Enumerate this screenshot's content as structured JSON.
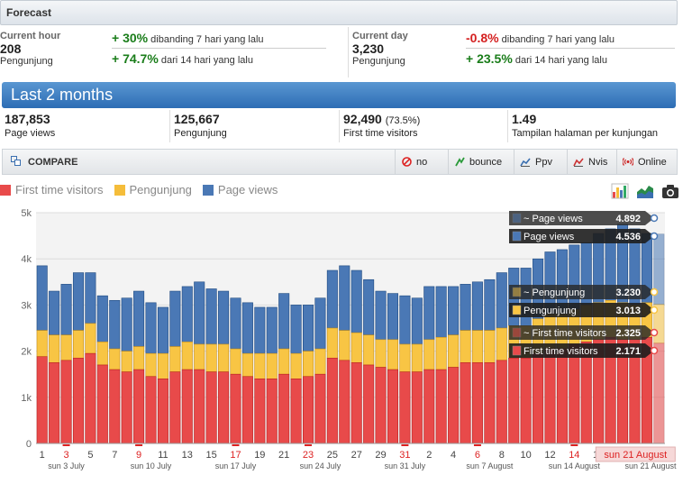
{
  "forecast": {
    "title": "Forecast",
    "hour": {
      "label": "Current hour",
      "value": "208",
      "unit": "Pengunjung",
      "cmp1_pct": "+ 30%",
      "cmp1_text": "dibanding 7 hari yang lalu",
      "cmp2_pct": "+ 74.7%",
      "cmp2_text": "dari 14 hari yang lalu"
    },
    "day": {
      "label": "Current day",
      "value": "3,230",
      "unit": "Pengunjung",
      "cmp1_pct": "-0.8%",
      "cmp1_text": "dibanding 7 hari yang lalu",
      "cmp2_pct": "+ 23.5%",
      "cmp2_text": "dari 14 hari yang lalu"
    }
  },
  "period": {
    "title": "Last 2 months"
  },
  "stats": [
    {
      "value": "187,853",
      "extra": "",
      "label": "Page views"
    },
    {
      "value": "125,667",
      "extra": "",
      "label": "Pengunjung"
    },
    {
      "value": "92,490",
      "extra": "(73.5%)",
      "label": "First time visitors"
    },
    {
      "value": "1.49",
      "extra": "",
      "label": "Tampilan halaman per kunjungan"
    }
  ],
  "compare": {
    "title": "COMPARE",
    "tools": [
      {
        "label": "no",
        "icon": "no-icon"
      },
      {
        "label": "bounce",
        "icon": "bounce-icon"
      },
      {
        "label": "Ppv",
        "icon": "ppv-icon"
      },
      {
        "label": "Nvis",
        "icon": "nvis-icon"
      },
      {
        "label": "Online",
        "icon": "online-icon"
      }
    ]
  },
  "legend": [
    {
      "label": "First time visitors",
      "color": "#e83535"
    },
    {
      "label": "Pengunjung",
      "color": "#f5bd3a"
    },
    {
      "label": "Page views",
      "color": "#4a78b5"
    }
  ],
  "tooltips": {
    "page_views_forecast_label": "~ Page views",
    "page_views_forecast_value": "4.892",
    "page_views_label": "Page views",
    "page_views_value": "4.536",
    "visitors_forecast_label": "~ Pengunjung",
    "visitors_forecast_value": "3.230",
    "visitors_label": "Pengunjung",
    "visitors_value": "3.013",
    "ftv_forecast_label": "~ First time visitors",
    "ftv_forecast_value": "2.325",
    "ftv_label": "First time visitors",
    "ftv_value": "2.171"
  },
  "chart_data": {
    "type": "bar",
    "ylim": [
      0,
      5000
    ],
    "y_ticks": [
      "0",
      "1k",
      "2k",
      "3k",
      "4k",
      "5k"
    ],
    "x_day_labels": [
      {
        "day": 1,
        "text": "1",
        "red": false
      },
      {
        "day": 3,
        "text": "3",
        "red": true
      },
      {
        "day": 5,
        "text": "5",
        "red": false
      },
      {
        "day": 7,
        "text": "7",
        "red": false
      },
      {
        "day": 9,
        "text": "9",
        "red": true
      },
      {
        "day": 11,
        "text": "11",
        "red": false
      },
      {
        "day": 13,
        "text": "13",
        "red": false
      },
      {
        "day": 15,
        "text": "15",
        "red": false
      },
      {
        "day": 17,
        "text": "17",
        "red": true
      },
      {
        "day": 19,
        "text": "19",
        "red": false
      },
      {
        "day": 21,
        "text": "21",
        "red": false
      },
      {
        "day": 23,
        "text": "23",
        "red": true
      },
      {
        "day": 25,
        "text": "25",
        "red": false
      },
      {
        "day": 27,
        "text": "27",
        "red": false
      },
      {
        "day": 29,
        "text": "29",
        "red": false
      },
      {
        "day": 31,
        "text": "31",
        "red": true
      },
      {
        "day": 33,
        "text": "2",
        "red": false
      },
      {
        "day": 35,
        "text": "4",
        "red": false
      },
      {
        "day": 37,
        "text": "6",
        "red": true
      },
      {
        "day": 39,
        "text": "8",
        "red": false
      },
      {
        "day": 41,
        "text": "10",
        "red": false
      },
      {
        "day": 43,
        "text": "12",
        "red": false
      },
      {
        "day": 45,
        "text": "14",
        "red": true
      },
      {
        "day": 47,
        "text": "16",
        "red": false
      }
    ],
    "x_week_labels": [
      {
        "day": 3,
        "text": "sun 3 July"
      },
      {
        "day": 10,
        "text": "sun 10 July"
      },
      {
        "day": 17,
        "text": "sun 17 July"
      },
      {
        "day": 24,
        "text": "sun 24 July"
      },
      {
        "day": 31,
        "text": "sun 31 July"
      },
      {
        "day": 38,
        "text": "sun 7 August"
      },
      {
        "day": 45,
        "text": "sun 14 August"
      },
      {
        "day": 52,
        "text": "sun 21 August"
      }
    ],
    "highlight_label": "sun 21 August",
    "series": [
      {
        "name": "First time visitors",
        "values": [
          1880,
          1750,
          1800,
          1850,
          1950,
          1700,
          1600,
          1550,
          1600,
          1450,
          1400,
          1550,
          1600,
          1600,
          1550,
          1550,
          1500,
          1450,
          1400,
          1400,
          1500,
          1400,
          1450,
          1500,
          1850,
          1800,
          1750,
          1700,
          1650,
          1600,
          1550,
          1550,
          1600,
          1600,
          1650,
          1750,
          1750,
          1750,
          1800,
          1850,
          1850,
          1950,
          2050,
          2050,
          2150,
          2200,
          2250,
          2300,
          2250,
          2250,
          2300,
          2171
        ]
      },
      {
        "name": "Pengunjung",
        "values": [
          2450,
          2350,
          2350,
          2450,
          2600,
          2200,
          2050,
          2000,
          2100,
          1950,
          1950,
          2100,
          2200,
          2150,
          2150,
          2150,
          2050,
          1950,
          1950,
          1950,
          2050,
          1950,
          2000,
          2050,
          2500,
          2450,
          2400,
          2350,
          2250,
          2250,
          2150,
          2150,
          2250,
          2300,
          2350,
          2450,
          2450,
          2450,
          2500,
          2550,
          2550,
          2700,
          2800,
          2800,
          2900,
          3000,
          3050,
          3100,
          3050,
          3000,
          3050,
          3013
        ]
      },
      {
        "name": "Page views",
        "values": [
          3850,
          3300,
          3450,
          3700,
          3700,
          3200,
          3100,
          3150,
          3300,
          3050,
          2950,
          3300,
          3400,
          3500,
          3350,
          3300,
          3150,
          3050,
          2950,
          2950,
          3250,
          3000,
          3000,
          3150,
          3750,
          3850,
          3750,
          3550,
          3300,
          3250,
          3200,
          3150,
          3400,
          3400,
          3400,
          3450,
          3500,
          3550,
          3700,
          3800,
          3800,
          4000,
          4150,
          4200,
          4300,
          4350,
          4550,
          4650,
          4750,
          4650,
          4550,
          4536
        ]
      }
    ]
  }
}
